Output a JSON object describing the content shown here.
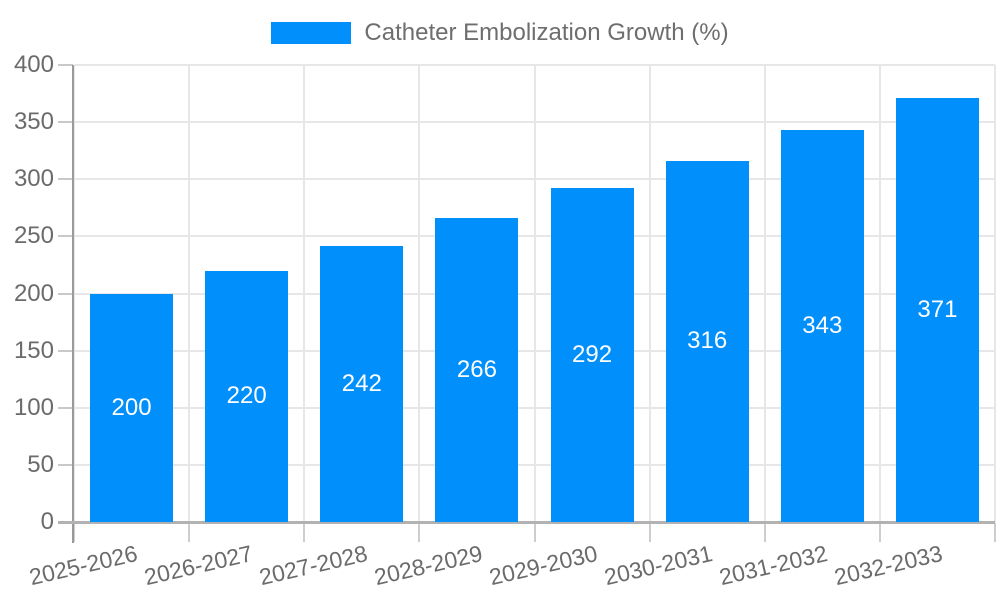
{
  "legend": {
    "label": "Catheter Embolization Growth (%)"
  },
  "chart_data": {
    "type": "bar",
    "title": "Catheter Embolization Growth (%)",
    "categories": [
      "2025-2026",
      "2026-2027",
      "2027-2028",
      "2028-2029",
      "2029-2030",
      "2030-2031",
      "2031-2032",
      "2032-2033"
    ],
    "values": [
      200,
      220,
      242,
      266,
      292,
      316,
      343,
      371
    ],
    "xlabel": "",
    "ylabel": "",
    "ylim": [
      0,
      400
    ],
    "y_ticks": [
      0,
      50,
      100,
      150,
      200,
      250,
      300,
      350,
      400
    ],
    "grid": true,
    "legend_position": "top",
    "bar_color": "#008FFB",
    "value_label_color": "#FFFFFF"
  }
}
